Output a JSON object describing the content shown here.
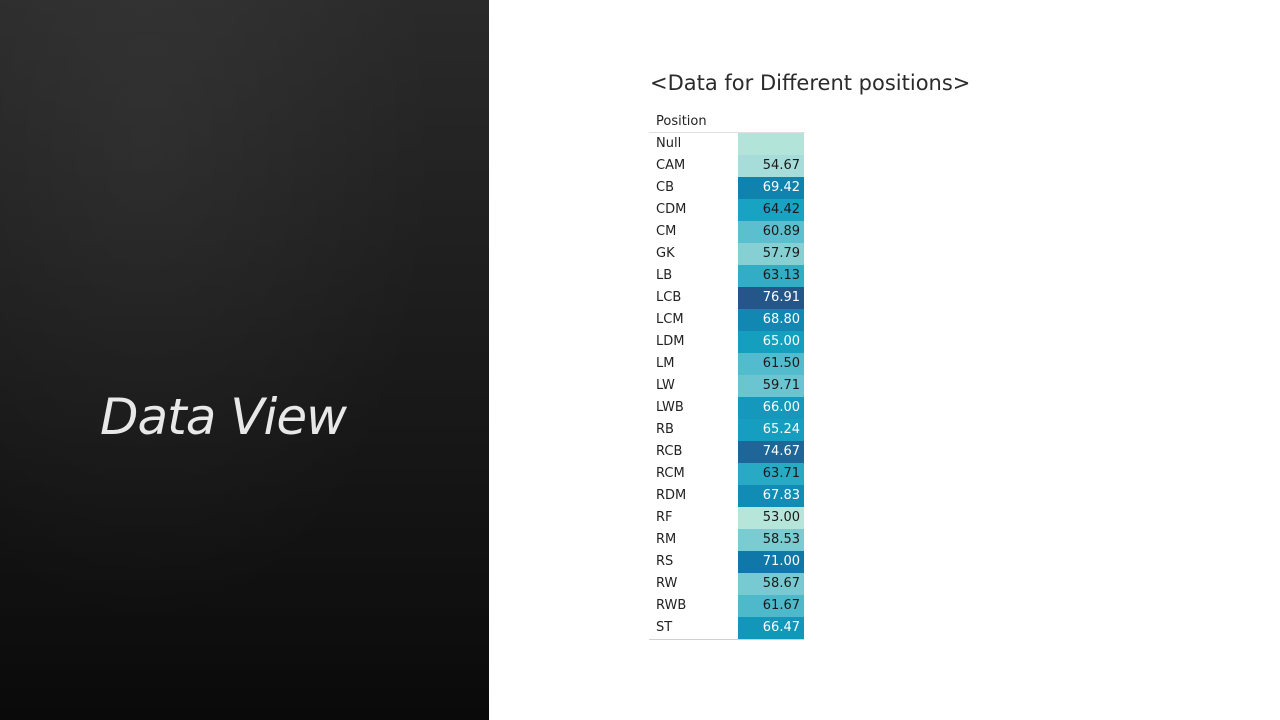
{
  "slide": {
    "title": "Data View"
  },
  "table": {
    "title": "<Data for Different positions>",
    "column_header": "Position",
    "rows": [
      {
        "position": "Null",
        "value": "",
        "color": "#b3e4da",
        "text_color": "#1a1a1a"
      },
      {
        "position": "CAM",
        "value": "54.67",
        "color": "#a6dcd9",
        "text_color": "#1a1a1a"
      },
      {
        "position": "CB",
        "value": "69.42",
        "color": "#0f82ad",
        "text_color": "#ffffff"
      },
      {
        "position": "CDM",
        "value": "64.42",
        "color": "#19a3c2",
        "text_color": "#1a1a1a"
      },
      {
        "position": "CM",
        "value": "60.89",
        "color": "#5bbfcf",
        "text_color": "#1a1a1a"
      },
      {
        "position": "GK",
        "value": "57.79",
        "color": "#86d0d3",
        "text_color": "#1a1a1a"
      },
      {
        "position": "LB",
        "value": "63.13",
        "color": "#31adc5",
        "text_color": "#1a1a1a"
      },
      {
        "position": "LCB",
        "value": "76.91",
        "color": "#24568a",
        "text_color": "#ffffff"
      },
      {
        "position": "LCM",
        "value": "68.80",
        "color": "#1187b2",
        "text_color": "#ffffff"
      },
      {
        "position": "LDM",
        "value": "65.00",
        "color": "#159fbf",
        "text_color": "#ffffff"
      },
      {
        "position": "LM",
        "value": "61.50",
        "color": "#52bbcd",
        "text_color": "#1a1a1a"
      },
      {
        "position": "LW",
        "value": "59.71",
        "color": "#6ac5d1",
        "text_color": "#1a1a1a"
      },
      {
        "position": "LWB",
        "value": "66.00",
        "color": "#1498bb",
        "text_color": "#ffffff"
      },
      {
        "position": "RB",
        "value": "65.24",
        "color": "#159ec0",
        "text_color": "#ffffff"
      },
      {
        "position": "RCB",
        "value": "74.67",
        "color": "#1e6598",
        "text_color": "#ffffff"
      },
      {
        "position": "RCM",
        "value": "63.71",
        "color": "#29aac4",
        "text_color": "#1a1a1a"
      },
      {
        "position": "RDM",
        "value": "67.83",
        "color": "#118db5",
        "text_color": "#ffffff"
      },
      {
        "position": "RF",
        "value": "53.00",
        "color": "#b6e6da",
        "text_color": "#1a1a1a"
      },
      {
        "position": "RM",
        "value": "58.53",
        "color": "#7acbd2",
        "text_color": "#1a1a1a"
      },
      {
        "position": "RS",
        "value": "71.00",
        "color": "#0f78a8",
        "text_color": "#ffffff"
      },
      {
        "position": "RW",
        "value": "58.67",
        "color": "#78cad2",
        "text_color": "#1a1a1a"
      },
      {
        "position": "RWB",
        "value": "61.67",
        "color": "#4fb9cc",
        "text_color": "#1a1a1a"
      },
      {
        "position": "ST",
        "value": "66.47",
        "color": "#1296b9",
        "text_color": "#ffffff"
      }
    ]
  }
}
